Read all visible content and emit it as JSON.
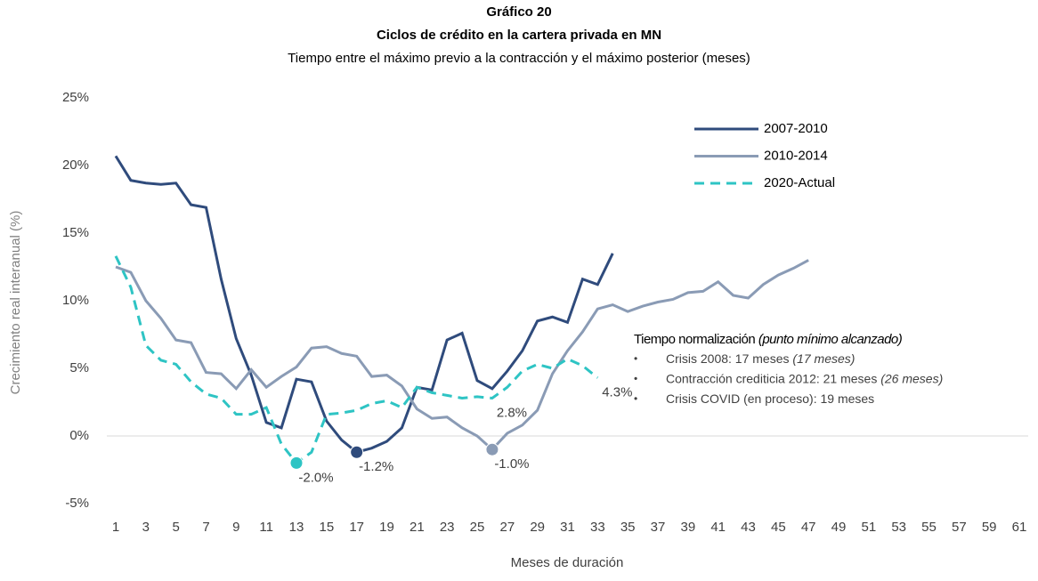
{
  "chart_data": {
    "type": "line",
    "title": "Gráfico 20",
    "title2": "Ciclos de crédito en la cartera privada en MN",
    "subtitle": "Tiempo entre el máximo previo a la contracción y el máximo posterior (meses)",
    "xlabel": "Meses de duración",
    "ylabel": "Crecimiento real interanual (%)",
    "categories": [
      1,
      null,
      3,
      null,
      5,
      null,
      7,
      null,
      9,
      null,
      11,
      null,
      13,
      null,
      15,
      null,
      17,
      null,
      19,
      null,
      21,
      null,
      23,
      null,
      25,
      null,
      27,
      null,
      29,
      null,
      31,
      null,
      33,
      null,
      35,
      null,
      37,
      null,
      39,
      null,
      41,
      null,
      43,
      null,
      45,
      null,
      47,
      null,
      49,
      null,
      51,
      null,
      53,
      null,
      55,
      null,
      57,
      null,
      59,
      null,
      61
    ],
    "ylim": [
      -5,
      25
    ],
    "yticks": [
      {
        "value": -5,
        "label": "-5%"
      },
      {
        "value": 0,
        "label": "0%"
      },
      {
        "value": 5,
        "label": "5%"
      },
      {
        "value": 10,
        "label": "10%"
      },
      {
        "value": 15,
        "label": "15%"
      },
      {
        "value": 20,
        "label": "20%"
      },
      {
        "value": 25,
        "label": "25%"
      }
    ],
    "marker_at_min": true,
    "series": [
      {
        "name": "2007-2010",
        "color": "#2f4b7c",
        "dash": false,
        "values": [
          20.7,
          18.9,
          18.7,
          18.6,
          18.7,
          17.1,
          16.9,
          11.6,
          7.2,
          4.5,
          1.0,
          0.6,
          4.2,
          4.0,
          1.1,
          -0.3,
          -1.2,
          -0.9,
          -0.4,
          0.6,
          3.6,
          3.4,
          7.1,
          7.6,
          4.1,
          3.5,
          4.8,
          6.3,
          8.5,
          8.8,
          8.4,
          11.6,
          11.2,
          13.5,
          null,
          null,
          null,
          null,
          null,
          null,
          null,
          null,
          null,
          null,
          null,
          null,
          null,
          null,
          null,
          null,
          null,
          null,
          null,
          null,
          null,
          null,
          null,
          null,
          null,
          null,
          null
        ],
        "value_labels": [
          null,
          null,
          null,
          null,
          null,
          null,
          null,
          null,
          null,
          null,
          null,
          null,
          null,
          null,
          null,
          null,
          "-1.2%",
          null,
          null,
          null,
          null,
          null,
          null,
          null,
          null,
          null,
          null,
          null,
          null,
          null,
          null,
          null,
          null,
          null,
          null,
          null,
          null,
          null,
          null,
          null,
          null,
          null,
          null,
          null,
          null,
          null,
          null,
          null,
          null,
          null,
          null,
          null,
          null,
          null,
          null,
          null,
          null,
          null,
          null,
          null,
          null
        ]
      },
      {
        "name": "2010-2014",
        "color": "#8a9bb5",
        "dash": false,
        "values": [
          12.5,
          12.1,
          10.0,
          8.7,
          7.1,
          6.9,
          4.7,
          4.6,
          3.5,
          4.9,
          3.6,
          4.4,
          5.1,
          6.5,
          6.6,
          6.1,
          5.9,
          4.4,
          4.5,
          3.7,
          2.0,
          1.3,
          1.4,
          0.6,
          0.0,
          -1.0,
          0.2,
          0.8,
          1.9,
          4.6,
          6.3,
          7.7,
          9.4,
          9.7,
          9.2,
          9.6,
          9.9,
          10.1,
          10.6,
          10.7,
          11.4,
          10.4,
          10.2,
          11.2,
          11.9,
          12.4,
          13.0,
          null,
          null,
          null,
          null,
          null,
          null,
          null,
          null,
          null,
          null,
          null,
          null,
          null,
          null
        ],
        "value_labels": [
          null,
          null,
          null,
          null,
          null,
          null,
          null,
          null,
          null,
          null,
          null,
          null,
          null,
          null,
          null,
          null,
          null,
          null,
          null,
          null,
          null,
          null,
          null,
          null,
          null,
          "-1.0%",
          null,
          null,
          null,
          null,
          null,
          null,
          null,
          null,
          null,
          null,
          null,
          null,
          null,
          null,
          null,
          null,
          null,
          null,
          null,
          null,
          null,
          null,
          null,
          null,
          null,
          null,
          null,
          null,
          null,
          null,
          null,
          null,
          null,
          null,
          null
        ]
      },
      {
        "name": "2020-Actual",
        "color": "#2ec4c4",
        "dash": true,
        "values": [
          13.3,
          11.0,
          6.7,
          5.6,
          5.3,
          4.0,
          3.1,
          2.8,
          1.6,
          1.6,
          2.1,
          -0.6,
          -2.0,
          -1.2,
          1.6,
          1.7,
          1.9,
          2.4,
          2.6,
          2.1,
          3.6,
          3.2,
          3.0,
          2.8,
          2.9,
          2.8,
          3.6,
          4.8,
          5.3,
          5.0,
          5.7,
          5.2,
          4.3,
          null,
          null,
          null,
          null,
          null,
          null,
          null,
          null,
          null,
          null,
          null,
          null,
          null,
          null,
          null,
          null,
          null,
          null,
          null,
          null,
          null,
          null,
          null,
          null,
          null,
          null,
          null,
          null
        ],
        "value_labels": [
          null,
          null,
          null,
          null,
          null,
          null,
          null,
          null,
          null,
          null,
          null,
          null,
          "-2.0%",
          null,
          null,
          null,
          null,
          null,
          null,
          null,
          null,
          null,
          null,
          null,
          null,
          "2.8%",
          null,
          null,
          null,
          null,
          null,
          null,
          "4.3%",
          null,
          null,
          null,
          null,
          null,
          null,
          null,
          null,
          null,
          null,
          null,
          null,
          null,
          null,
          null,
          null,
          null,
          null,
          null,
          null,
          null,
          null,
          null,
          null,
          null,
          null,
          null,
          null
        ]
      }
    ],
    "notes": {
      "heading": "Tiempo normalización",
      "heading_note": "(punto mínimo alcanzado)",
      "items": [
        {
          "text": "Crisis 2008: 17 meses",
          "note": "(17 meses)"
        },
        {
          "text": "Contracción crediticia 2012: 21 meses",
          "note": "(26 meses)"
        },
        {
          "text": "Crisis COVID (en proceso): 19 meses",
          "note": null
        }
      ]
    }
  }
}
